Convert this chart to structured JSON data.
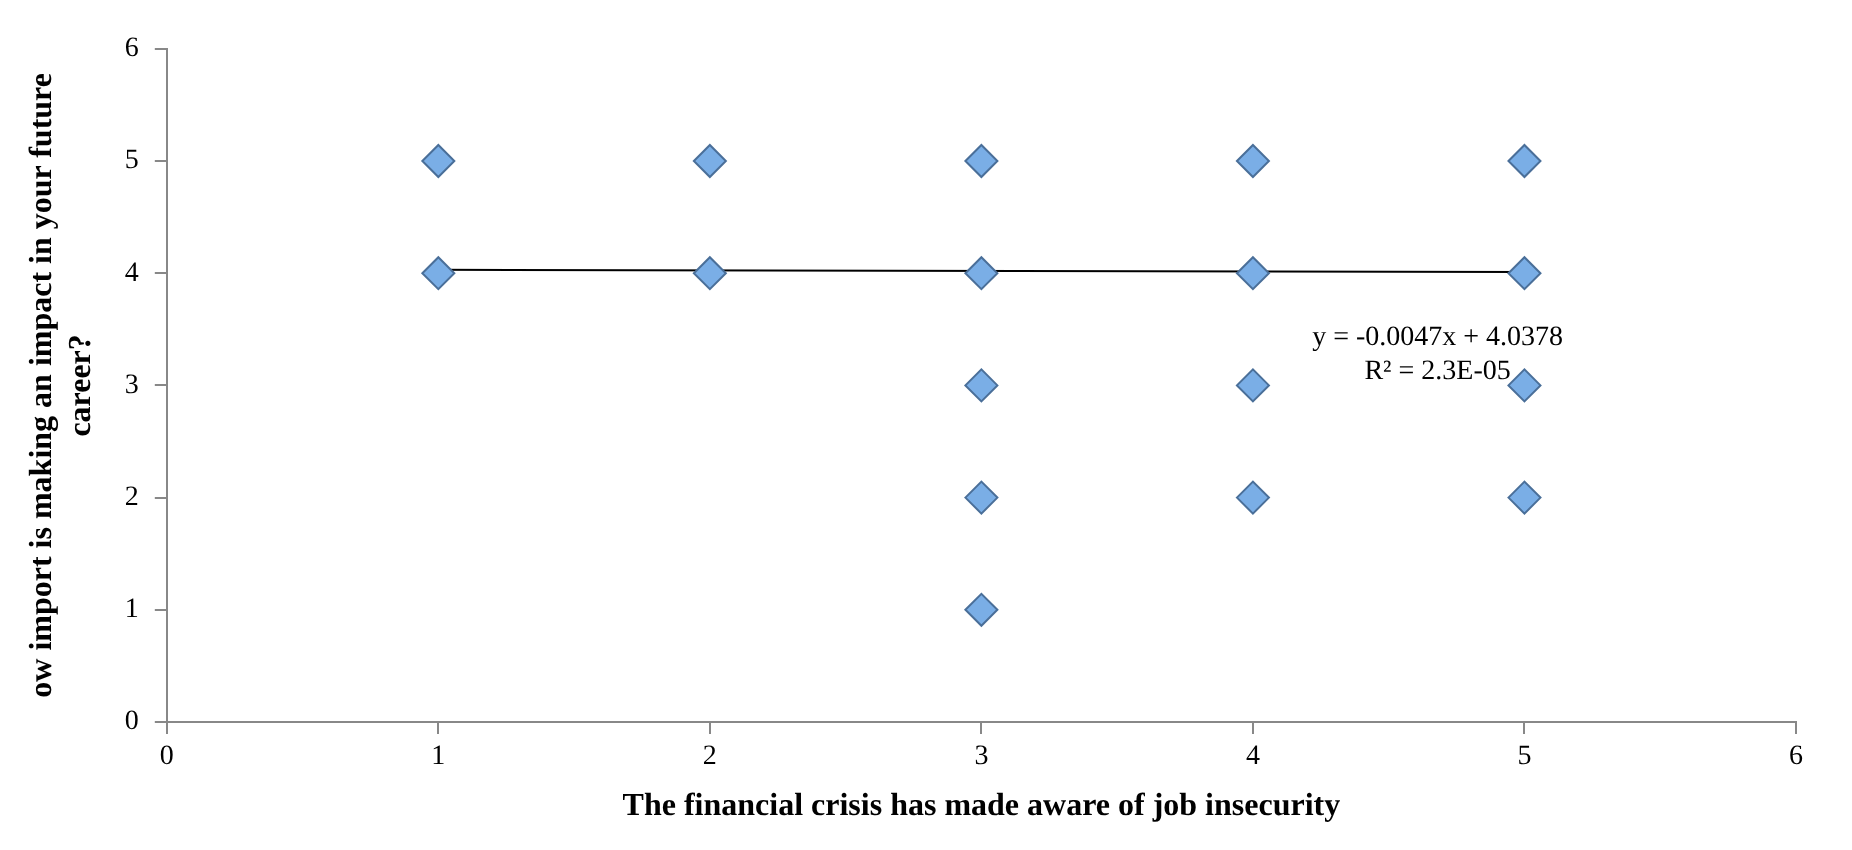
{
  "chart_data": {
    "type": "scatter",
    "xlabel": "The financial crisis has made aware of job insecurity",
    "ylabel": "ow import is making an impact in your future career?",
    "series": [
      {
        "color": "#7aaee6",
        "x": [
          1,
          1,
          2,
          2,
          3,
          3,
          3,
          3,
          3,
          4,
          4,
          4,
          4,
          5,
          5,
          5,
          5
        ],
        "values": [
          4,
          5,
          4,
          5,
          1,
          2,
          3,
          4,
          5,
          2,
          3,
          4,
          5,
          2,
          3,
          4,
          5
        ]
      },
      {
        "type": "line",
        "marker": "none",
        "color": "#000000",
        "x": [
          1,
          5
        ],
        "values": [
          4.03,
          4.01
        ]
      }
    ],
    "marker": "diamond",
    "grid": false,
    "legend": false,
    "xlim": [
      0,
      6
    ],
    "xticks": [
      0,
      1,
      2,
      3,
      4,
      5,
      6
    ],
    "ylim": [
      0,
      6
    ],
    "yticks": [
      0,
      1,
      2,
      3,
      4,
      5,
      6
    ],
    "annotations": [
      "y = -0.0047x + 4.0378\nR² = 2.3E-05"
    ]
  }
}
